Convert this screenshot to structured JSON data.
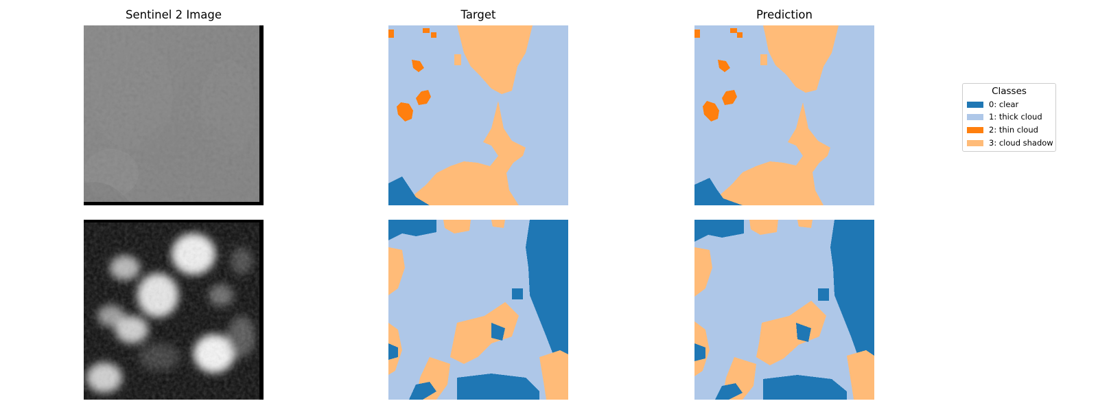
{
  "columns": {
    "image": "Sentinel 2 Image",
    "target": "Target",
    "prediction": "Prediction"
  },
  "legend": {
    "title": "Classes",
    "items": [
      {
        "label": "0: clear",
        "color": "#1f77b4"
      },
      {
        "label": "1: thick cloud",
        "color": "#aec7e8"
      },
      {
        "label": "2: thin cloud",
        "color": "#ff7f0e"
      },
      {
        "label": "3: cloud shadow",
        "color": "#ffbb78"
      }
    ]
  }
}
